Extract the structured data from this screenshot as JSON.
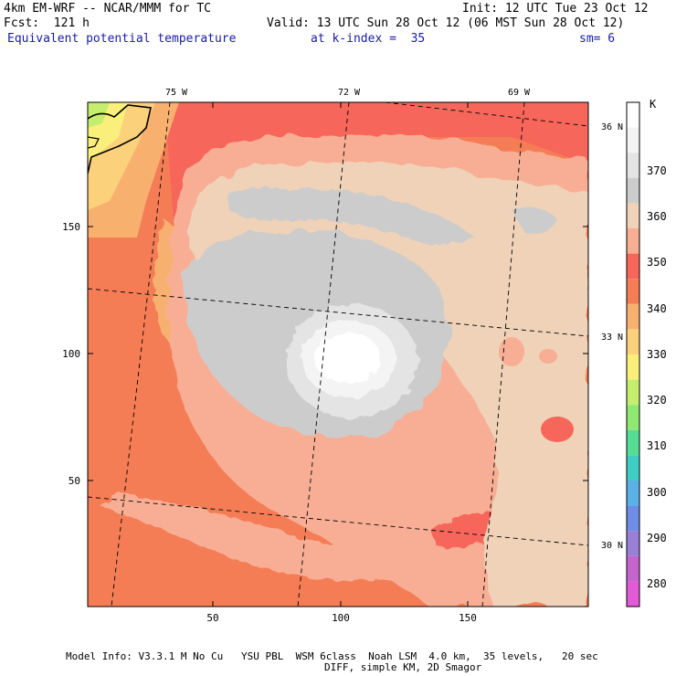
{
  "header": {
    "model": "4km EM-WRF -- NCAR/MMM for TC",
    "init": "Init: 12 UTC Tue 23 Oct 12",
    "fcst": "Fcst:  121 h",
    "valid": "Valid: 13 UTC Sun 28 Oct 12 (06 MST Sun 28 Oct 12)",
    "field": "Equivalent potential temperature",
    "kindex": "at k-index =  35",
    "sm": "sm= 6"
  },
  "map": {
    "lon_labels": [
      "75 W",
      "72 W",
      "69 W"
    ],
    "lat_labels": [
      "36 N",
      "33 N",
      "30 N"
    ],
    "y_ticks": [
      "150",
      "100",
      "50"
    ],
    "x_ticks": [
      "50",
      "100",
      "150"
    ]
  },
  "colorbar": {
    "unit": "K",
    "levels": [
      "370",
      "360",
      "350",
      "340",
      "330",
      "320",
      "310",
      "300",
      "290",
      "280"
    ],
    "colors": [
      "#ffffff",
      "#f4f4f4",
      "#e4e4e4",
      "#cccccc",
      "#efd2b7",
      "#f8ae94",
      "#f7665a",
      "#f47d56",
      "#f8b06f",
      "#fbd27b",
      "#f9ef7a",
      "#c6ee6e",
      "#8ee871",
      "#56dc94",
      "#3fcfc2",
      "#5bb1e5",
      "#6f8ce6",
      "#9a7fd6",
      "#c464cc",
      "#e25ad8"
    ]
  },
  "footer": {
    "line1": "Model Info: V3.3.1 M No Cu   YSU PBL  WSM 6class  Noah LSM  4.0 km,  35 levels,   20 sec",
    "line2": "DIFF, simple KM, 2D Smagor"
  }
}
